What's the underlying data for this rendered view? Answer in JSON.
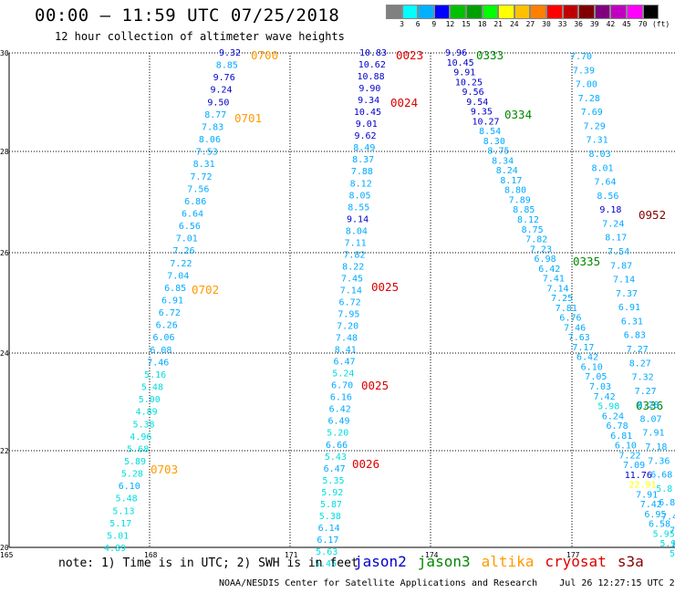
{
  "header": {
    "title": "00:00 – 11:59 UTC 07/25/2018",
    "subtitle": "12 hour collection of altimeter wave heights"
  },
  "colorbar": {
    "colors": [
      "#808080",
      "#00ffff",
      "#00b0ff",
      "#0000ff",
      "#00c000",
      "#00a000",
      "#00ff00",
      "#ffff00",
      "#ffc000",
      "#ff8000",
      "#ff0000",
      "#c00000",
      "#800000",
      "#800080",
      "#c000c0",
      "#ff00ff",
      "#000000"
    ],
    "labels": [
      "3",
      "6",
      "9",
      "12",
      "15",
      "18",
      "21",
      "24",
      "27",
      "30",
      "33",
      "36",
      "39",
      "42",
      "45",
      "70"
    ],
    "unit": "(ft)"
  },
  "axes": {
    "x_ticks": [
      "165",
      "168",
      "171",
      "174",
      "177"
    ],
    "y_ticks": [
      "30",
      "28",
      "26",
      "24",
      "22",
      "20"
    ]
  },
  "tracks": [
    {
      "name": "track-a",
      "satellite": "cryosat",
      "points": [
        [
          "9.32",
          "#0000cc"
        ],
        [
          "8.85",
          "#00aaff"
        ],
        [
          "9.76",
          "#0000cc"
        ],
        [
          "9.24",
          "#0000cc"
        ],
        [
          "9.50",
          "#0000cc"
        ],
        [
          "8.77",
          "#00aaff"
        ],
        [
          "7.83",
          "#00aaff"
        ],
        [
          "8.06",
          "#00aaff"
        ],
        [
          "7.53",
          "#00aaff"
        ],
        [
          "8.31",
          "#00aaff"
        ],
        [
          "7.72",
          "#00aaff"
        ],
        [
          "7.56",
          "#00aaff"
        ],
        [
          "6.86",
          "#00aaff"
        ],
        [
          "6.64",
          "#00aaff"
        ],
        [
          "6.56",
          "#00aaff"
        ],
        [
          "7.01",
          "#00aaff"
        ],
        [
          "7.26",
          "#00aaff"
        ],
        [
          "7.22",
          "#00aaff"
        ],
        [
          "7.04",
          "#00aaff"
        ],
        [
          "6.85",
          "#00aaff"
        ],
        [
          "6.91",
          "#00aaff"
        ],
        [
          "6.72",
          "#00aaff"
        ],
        [
          "6.26",
          "#00aaff"
        ],
        [
          "6.06",
          "#00aaff"
        ],
        [
          "6.08",
          "#00aaff"
        ],
        [
          "7.46",
          "#00aaff"
        ],
        [
          "5.16",
          "#00dddd"
        ],
        [
          "5.48",
          "#00dddd"
        ],
        [
          "5.00",
          "#00dddd"
        ],
        [
          "4.89",
          "#00dddd"
        ],
        [
          "5.38",
          "#00dddd"
        ],
        [
          "4.96",
          "#00dddd"
        ],
        [
          "5.68",
          "#00dddd"
        ],
        [
          "5.89",
          "#00dddd"
        ],
        [
          "5.28",
          "#00dddd"
        ],
        [
          "6.10",
          "#00aaff"
        ],
        [
          "5.48",
          "#00dddd"
        ],
        [
          "5.13",
          "#00dddd"
        ],
        [
          "5.17",
          "#00dddd"
        ],
        [
          "5.01",
          "#00dddd"
        ],
        [
          "4.89",
          "#00dddd"
        ]
      ],
      "times": [
        "0700",
        "0701",
        "0702",
        "0703"
      ]
    },
    {
      "name": "track-b",
      "satellite": "cryosat",
      "points": [
        [
          "10.83",
          "#0000cc"
        ],
        [
          "10.62",
          "#0000cc"
        ],
        [
          "10.88",
          "#0000cc"
        ],
        [
          "9.90",
          "#0000cc"
        ],
        [
          "9.34",
          "#0000cc"
        ],
        [
          "10.45",
          "#0000cc"
        ],
        [
          "9.01",
          "#0000cc"
        ],
        [
          "9.62",
          "#0000cc"
        ],
        [
          "8.49",
          "#00aaff"
        ],
        [
          "8.37",
          "#00aaff"
        ],
        [
          "7.88",
          "#00aaff"
        ],
        [
          "8.12",
          "#00aaff"
        ],
        [
          "8.05",
          "#00aaff"
        ],
        [
          "8.55",
          "#00aaff"
        ],
        [
          "9.14",
          "#0000cc"
        ],
        [
          "8.04",
          "#00aaff"
        ],
        [
          "7.11",
          "#00aaff"
        ],
        [
          "7.82",
          "#00aaff"
        ],
        [
          "8.22",
          "#00aaff"
        ],
        [
          "7.45",
          "#00aaff"
        ],
        [
          "7.14",
          "#00aaff"
        ],
        [
          "6.72",
          "#00aaff"
        ],
        [
          "7.95",
          "#00aaff"
        ],
        [
          "7.20",
          "#00aaff"
        ],
        [
          "7.48",
          "#00aaff"
        ],
        [
          "8.41",
          "#00aaff"
        ],
        [
          "6.47",
          "#00aaff"
        ],
        [
          "5.24",
          "#00dddd"
        ],
        [
          "6.70",
          "#00aaff"
        ],
        [
          "6.16",
          "#00aaff"
        ],
        [
          "6.42",
          "#00aaff"
        ],
        [
          "6.49",
          "#00aaff"
        ],
        [
          "5.20",
          "#00dddd"
        ],
        [
          "6.66",
          "#00aaff"
        ],
        [
          "5.43",
          "#00dddd"
        ],
        [
          "6.47",
          "#00aaff"
        ],
        [
          "5.35",
          "#00dddd"
        ],
        [
          "5.92",
          "#00dddd"
        ],
        [
          "5.87",
          "#00dddd"
        ],
        [
          "5.38",
          "#00dddd"
        ],
        [
          "6.14",
          "#00aaff"
        ],
        [
          "6.17",
          "#00aaff"
        ],
        [
          "5.63",
          "#00dddd"
        ],
        [
          "5.45",
          "#00dddd"
        ]
      ],
      "times": [
        "0023",
        "0024",
        "0025",
        "0025",
        "0026"
      ]
    },
    {
      "name": "track-c",
      "satellite": "jason3",
      "points": [
        [
          "9.96",
          "#0000cc"
        ],
        [
          "10.45",
          "#0000cc"
        ],
        [
          "9.91",
          "#0000cc"
        ],
        [
          "10.25",
          "#0000cc"
        ],
        [
          "9.56",
          "#0000cc"
        ],
        [
          "9.54",
          "#0000cc"
        ],
        [
          "9.35",
          "#0000cc"
        ],
        [
          "10.27",
          "#0000cc"
        ],
        [
          "8.54",
          "#00aaff"
        ],
        [
          "8.30",
          "#00aaff"
        ],
        [
          "8.75",
          "#00aaff"
        ],
        [
          "8.34",
          "#00aaff"
        ],
        [
          "8.24",
          "#00aaff"
        ],
        [
          "8.17",
          "#00aaff"
        ],
        [
          "8.80",
          "#00aaff"
        ],
        [
          "7.89",
          "#00aaff"
        ],
        [
          "8.85",
          "#00aaff"
        ],
        [
          "8.12",
          "#00aaff"
        ],
        [
          "8.75",
          "#00aaff"
        ],
        [
          "7.82",
          "#00aaff"
        ],
        [
          "7.23",
          "#00aaff"
        ],
        [
          "6.98",
          "#00aaff"
        ],
        [
          "6.42",
          "#00aaff"
        ],
        [
          "7.41",
          "#00aaff"
        ],
        [
          "7.14",
          "#00aaff"
        ],
        [
          "7.25",
          "#00aaff"
        ],
        [
          "7.81",
          "#00aaff"
        ],
        [
          "6.76",
          "#00aaff"
        ],
        [
          "7.46",
          "#00aaff"
        ],
        [
          "7.63",
          "#00aaff"
        ],
        [
          "7.17",
          "#00aaff"
        ],
        [
          "6.42",
          "#00aaff"
        ],
        [
          "6.10",
          "#00aaff"
        ],
        [
          "7.05",
          "#00aaff"
        ],
        [
          "7.03",
          "#00aaff"
        ],
        [
          "7.42",
          "#00aaff"
        ],
        [
          "5.98",
          "#00dddd"
        ],
        [
          "6.24",
          "#00aaff"
        ],
        [
          "6.78",
          "#00aaff"
        ],
        [
          "6.81",
          "#00aaff"
        ],
        [
          "6.10",
          "#00aaff"
        ],
        [
          "7.22",
          "#00aaff"
        ],
        [
          "7.09",
          "#00aaff"
        ],
        [
          "11.76",
          "#0000cc"
        ],
        [
          "22.91",
          "#ffff00"
        ],
        [
          "7.91",
          "#00aaff"
        ],
        [
          "7.42",
          "#00aaff"
        ],
        [
          "6.95",
          "#00aaff"
        ],
        [
          "6.58",
          "#00aaff"
        ],
        [
          "5.95",
          "#00dddd"
        ],
        [
          "5.9",
          "#00dddd"
        ],
        [
          "5",
          "#00dddd"
        ]
      ],
      "times": [
        "0333",
        "0334",
        "0335",
        "0336"
      ]
    },
    {
      "name": "track-d",
      "satellite": "s3a",
      "points": [
        [
          "7.70",
          "#00aaff"
        ],
        [
          "7.39",
          "#00aaff"
        ],
        [
          "7.00",
          "#00aaff"
        ],
        [
          "7.28",
          "#00aaff"
        ],
        [
          "7.69",
          "#00aaff"
        ],
        [
          "7.29",
          "#00aaff"
        ],
        [
          "7.31",
          "#00aaff"
        ],
        [
          "8.03",
          "#00aaff"
        ],
        [
          "8.01",
          "#00aaff"
        ],
        [
          "7.64",
          "#00aaff"
        ],
        [
          "8.56",
          "#00aaff"
        ],
        [
          "9.18",
          "#0000cc"
        ],
        [
          "7.24",
          "#00aaff"
        ],
        [
          "8.17",
          "#00aaff"
        ],
        [
          "7.54",
          "#00aaff"
        ],
        [
          "7.87",
          "#00aaff"
        ],
        [
          "7.14",
          "#00aaff"
        ],
        [
          "7.37",
          "#00aaff"
        ],
        [
          "6.91",
          "#00aaff"
        ],
        [
          "6.31",
          "#00aaff"
        ],
        [
          "6.83",
          "#00aaff"
        ],
        [
          "7.27",
          "#00aaff"
        ],
        [
          "8.27",
          "#00aaff"
        ],
        [
          "7.32",
          "#00aaff"
        ],
        [
          "7.27",
          "#00aaff"
        ],
        [
          "8.28",
          "#00aaff"
        ],
        [
          "8.07",
          "#00aaff"
        ],
        [
          "7.91",
          "#00aaff"
        ],
        [
          "7.18",
          "#00aaff"
        ],
        [
          "7.36",
          "#00aaff"
        ],
        [
          "6.68",
          "#00aaff"
        ],
        [
          "5.8",
          "#00dddd"
        ],
        [
          "6.8",
          "#00aaff"
        ],
        [
          "7.4",
          "#00aaff"
        ],
        [
          "7",
          "#00aaff"
        ],
        [
          "8",
          "#00aaff"
        ]
      ],
      "times": [
        "0952"
      ]
    }
  ],
  "note": "note: 1) Time is in UTC; 2) SWH is in feet",
  "legend": [
    {
      "label": "jason2",
      "color": "#0000cc"
    },
    {
      "label": "jason3",
      "color": "#008800"
    },
    {
      "label": "altika",
      "color": "#ff9900"
    },
    {
      "label": "cryosat",
      "color": "#dd0000"
    },
    {
      "label": "s3a",
      "color": "#880000"
    }
  ],
  "footer": "NOAA/NESDIS Center for Satellite Applications and Research    Jul 26 12:27:15 UTC 2018"
}
